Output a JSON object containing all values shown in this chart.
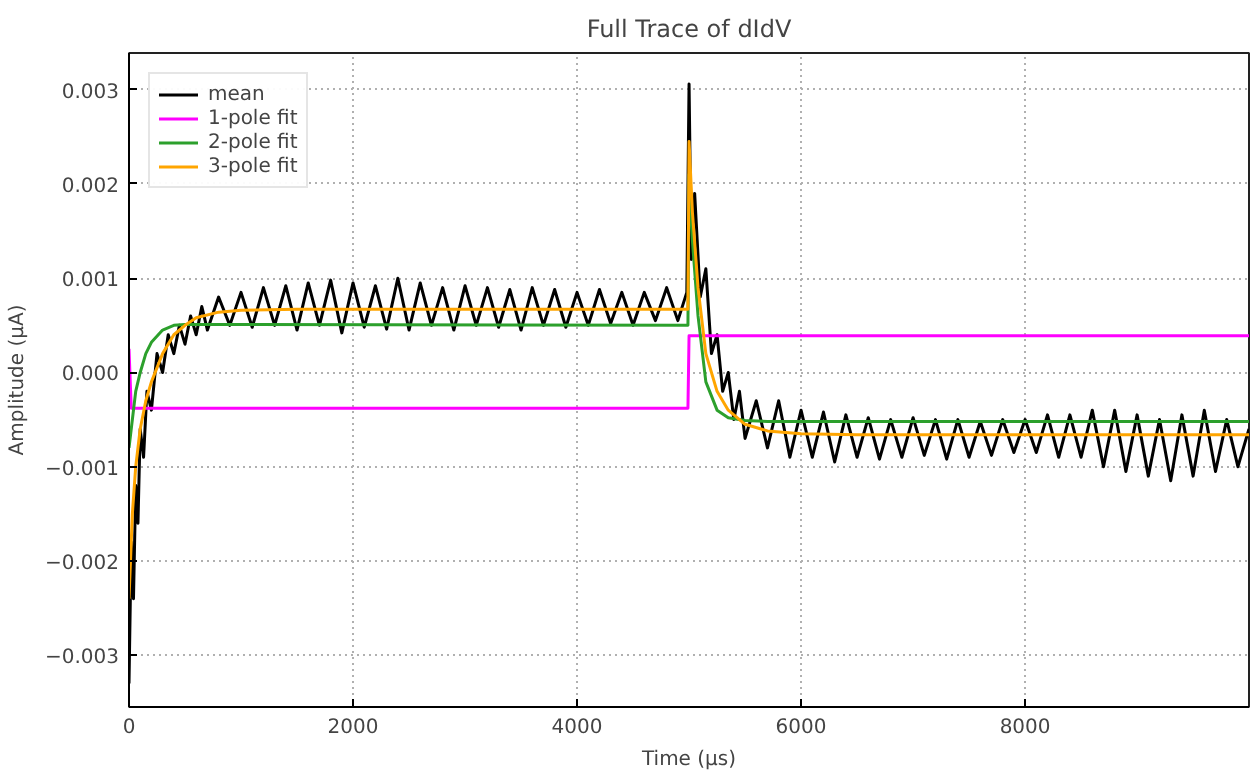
{
  "chart_data": {
    "type": "line",
    "title": "Full Trace of dIdV",
    "xlabel": "Time (μs)",
    "ylabel": "Amplitude (μA)",
    "xlim": [
      0,
      9999
    ],
    "ylim": [
      -0.00355,
      0.00339
    ],
    "xticks": [
      0,
      2000,
      4000,
      6000,
      8000
    ],
    "yticks": [
      {
        "value": -0.003,
        "label": "−0.003"
      },
      {
        "value": -0.002,
        "label": "−0.002"
      },
      {
        "value": -0.001,
        "label": "−0.001"
      },
      {
        "value": 0,
        "label": "0.000"
      },
      {
        "value": 0.001,
        "label": "0.001"
      },
      {
        "value": 0.002,
        "label": "0.002"
      },
      {
        "value": 0.003,
        "label": "0.003"
      }
    ],
    "grid": true,
    "legend": "top left",
    "line_style": "solid",
    "series": [
      {
        "name": "mean",
        "color": "#000000",
        "x": [
          0,
          20,
          40,
          60,
          80,
          100,
          130,
          160,
          200,
          250,
          300,
          350,
          400,
          450,
          500,
          550,
          600,
          650,
          700,
          800,
          900,
          1000,
          1100,
          1200,
          1300,
          1400,
          1500,
          1600,
          1700,
          1800,
          1900,
          2000,
          2100,
          2200,
          2300,
          2400,
          2500,
          2600,
          2700,
          2800,
          2900,
          3000,
          3100,
          3200,
          3300,
          3400,
          3500,
          3600,
          3700,
          3800,
          3900,
          4000,
          4100,
          4200,
          4300,
          4400,
          4500,
          4600,
          4700,
          4800,
          4900,
          4980,
          5000,
          5020,
          5050,
          5100,
          5150,
          5200,
          5250,
          5300,
          5350,
          5400,
          5450,
          5500,
          5600,
          5700,
          5800,
          5900,
          6000,
          6100,
          6200,
          6300,
          6400,
          6500,
          6600,
          6700,
          6800,
          6900,
          7000,
          7100,
          7200,
          7300,
          7400,
          7500,
          7600,
          7700,
          7800,
          7900,
          8000,
          8100,
          8200,
          8300,
          8400,
          8500,
          8600,
          8700,
          8800,
          8900,
          9000,
          9100,
          9200,
          9300,
          9400,
          9500,
          9600,
          9700,
          9800,
          9900,
          9999
        ],
        "values": [
          -0.0033,
          -0.0018,
          -0.0024,
          -0.0012,
          -0.0016,
          -0.0006,
          -0.0009,
          -0.0002,
          -0.0004,
          0.0002,
          0.0,
          0.0004,
          0.0002,
          0.0005,
          0.0003,
          0.0006,
          0.0004,
          0.0007,
          0.00045,
          0.0008,
          0.0005,
          0.00085,
          0.00048,
          0.0009,
          0.0005,
          0.00092,
          0.00045,
          0.00095,
          0.0005,
          0.00098,
          0.00042,
          0.00095,
          0.00048,
          0.00092,
          0.00046,
          0.001,
          0.00045,
          0.00095,
          0.0005,
          0.0009,
          0.00045,
          0.00092,
          0.0005,
          0.0009,
          0.00048,
          0.00088,
          0.00045,
          0.0009,
          0.0005,
          0.00088,
          0.00048,
          0.00085,
          0.0005,
          0.00088,
          0.00052,
          0.00085,
          0.0005,
          0.00085,
          0.00055,
          0.0009,
          0.00055,
          0.00085,
          0.00306,
          0.0012,
          0.0019,
          0.0008,
          0.0011,
          0.0002,
          0.0004,
          -0.0002,
          0.0,
          -0.0005,
          -0.0002,
          -0.0007,
          -0.0003,
          -0.0008,
          -0.0003,
          -0.0009,
          -0.0004,
          -0.0009,
          -0.00042,
          -0.00095,
          -0.00045,
          -0.0009,
          -0.00048,
          -0.00092,
          -0.0005,
          -0.0009,
          -0.00048,
          -0.00088,
          -0.0005,
          -0.00092,
          -0.0005,
          -0.0009,
          -0.00052,
          -0.00088,
          -0.0005,
          -0.00085,
          -0.0005,
          -0.00085,
          -0.00045,
          -0.0009,
          -0.00045,
          -0.0009,
          -0.0004,
          -0.001,
          -0.0004,
          -0.00105,
          -0.00045,
          -0.0011,
          -0.0005,
          -0.00115,
          -0.00045,
          -0.0011,
          -0.0004,
          -0.00105,
          -0.0005,
          -0.001,
          -0.0006
        ]
      },
      {
        "name": "1-pole fit",
        "color": "#ff00ff",
        "x": [
          0,
          20,
          4990,
          5000,
          9999
        ],
        "values": [
          0.00025,
          -0.00038,
          -0.00038,
          0.00039,
          0.00039
        ]
      },
      {
        "name": "2-pole fit",
        "color": "#2ca02c",
        "x": [
          0,
          30,
          60,
          100,
          150,
          200,
          300,
          400,
          500,
          700,
          1000,
          4990,
          5000,
          5030,
          5080,
          5150,
          5250,
          5350,
          5500,
          5700,
          6000,
          9999
        ],
        "values": [
          -0.0008,
          -0.0005,
          -0.0002,
          0.0,
          0.0002,
          0.00032,
          0.00045,
          0.0005,
          0.00051,
          0.00051,
          0.00051,
          0.0005,
          0.0021,
          0.0014,
          0.0006,
          -0.0001,
          -0.0004,
          -0.00048,
          -0.00051,
          -0.00052,
          -0.00052,
          -0.00052
        ]
      },
      {
        "name": "3-pole fit",
        "color": "#ffa500",
        "x": [
          0,
          30,
          60,
          100,
          150,
          200,
          300,
          400,
          500,
          600,
          800,
          1000,
          1500,
          4990,
          5000,
          5030,
          5080,
          5150,
          5250,
          5350,
          5500,
          5700,
          6000,
          6500,
          9999
        ],
        "values": [
          -0.0024,
          -0.0015,
          -0.001,
          -0.0006,
          -0.0003,
          -0.0001,
          0.0002,
          0.0004,
          0.0005,
          0.00058,
          0.00064,
          0.00066,
          0.00067,
          0.00067,
          0.00245,
          0.0017,
          0.0009,
          0.0002,
          -0.0002,
          -0.0004,
          -0.00055,
          -0.00062,
          -0.00065,
          -0.00066,
          -0.00066
        ]
      }
    ]
  }
}
